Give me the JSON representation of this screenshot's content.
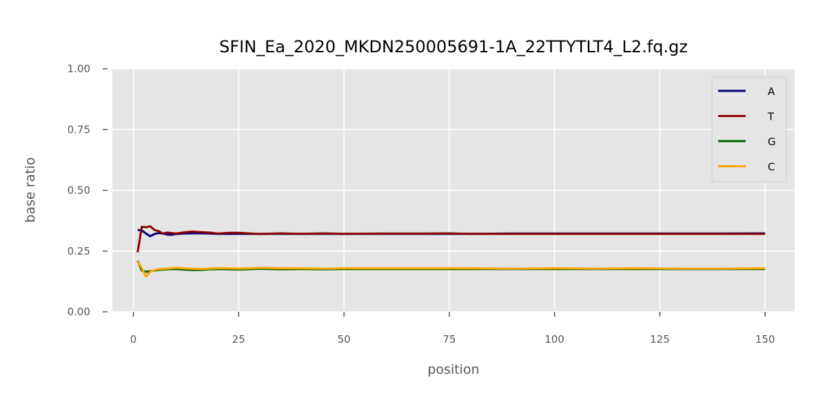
{
  "chart_data": {
    "type": "line",
    "title": "SFIN_Ea_2020_MKDN250005691-1A_22TTYTLT4_L2.fq.gz",
    "xlabel": "position",
    "ylabel": "base ratio",
    "xlim": [
      -5,
      157
    ],
    "ylim": [
      0,
      1
    ],
    "xticks": [
      0,
      25,
      50,
      75,
      100,
      125,
      150
    ],
    "yticks": [
      "0.00",
      "0.25",
      "0.50",
      "0.75",
      "1.00"
    ],
    "grid": true,
    "legend_position": "top-right",
    "series": [
      {
        "name": "A",
        "color": "#000080",
        "points": [
          [
            1,
            0.337
          ],
          [
            2,
            0.335
          ],
          [
            3,
            0.322
          ],
          [
            4,
            0.311
          ],
          [
            5,
            0.32
          ],
          [
            6,
            0.324
          ],
          [
            7,
            0.322
          ],
          [
            8,
            0.318
          ],
          [
            9,
            0.317
          ],
          [
            10,
            0.32
          ],
          [
            12,
            0.322
          ],
          [
            14,
            0.323
          ],
          [
            16,
            0.323
          ],
          [
            18,
            0.322
          ],
          [
            20,
            0.321
          ],
          [
            25,
            0.321
          ],
          [
            30,
            0.321
          ],
          [
            40,
            0.321
          ],
          [
            50,
            0.321
          ],
          [
            60,
            0.321
          ],
          [
            70,
            0.321
          ],
          [
            80,
            0.321
          ],
          [
            90,
            0.322
          ],
          [
            100,
            0.322
          ],
          [
            110,
            0.322
          ],
          [
            120,
            0.322
          ],
          [
            130,
            0.322
          ],
          [
            140,
            0.322
          ],
          [
            150,
            0.323
          ]
        ]
      },
      {
        "name": "T",
        "color": "#8b0000",
        "points": [
          [
            1,
            0.245
          ],
          [
            2,
            0.35
          ],
          [
            3,
            0.348
          ],
          [
            4,
            0.352
          ],
          [
            5,
            0.337
          ],
          [
            6,
            0.332
          ],
          [
            7,
            0.322
          ],
          [
            8,
            0.326
          ],
          [
            10,
            0.322
          ],
          [
            12,
            0.327
          ],
          [
            14,
            0.33
          ],
          [
            16,
            0.328
          ],
          [
            18,
            0.326
          ],
          [
            20,
            0.322
          ],
          [
            23,
            0.325
          ],
          [
            25,
            0.325
          ],
          [
            28,
            0.322
          ],
          [
            30,
            0.32
          ],
          [
            35,
            0.323
          ],
          [
            40,
            0.321
          ],
          [
            45,
            0.323
          ],
          [
            50,
            0.321
          ],
          [
            60,
            0.322
          ],
          [
            70,
            0.322
          ],
          [
            75,
            0.323
          ],
          [
            80,
            0.321
          ],
          [
            90,
            0.321
          ],
          [
            100,
            0.321
          ],
          [
            110,
            0.321
          ],
          [
            120,
            0.321
          ],
          [
            130,
            0.321
          ],
          [
            140,
            0.321
          ],
          [
            150,
            0.321
          ]
        ]
      },
      {
        "name": "G",
        "color": "#006400",
        "points": [
          [
            1,
            0.21
          ],
          [
            2,
            0.17
          ],
          [
            3,
            0.165
          ],
          [
            4,
            0.167
          ],
          [
            5,
            0.17
          ],
          [
            6,
            0.172
          ],
          [
            8,
            0.175
          ],
          [
            10,
            0.176
          ],
          [
            12,
            0.174
          ],
          [
            14,
            0.172
          ],
          [
            16,
            0.172
          ],
          [
            18,
            0.175
          ],
          [
            20,
            0.176
          ],
          [
            25,
            0.174
          ],
          [
            30,
            0.177
          ],
          [
            35,
            0.175
          ],
          [
            40,
            0.176
          ],
          [
            45,
            0.175
          ],
          [
            50,
            0.176
          ],
          [
            60,
            0.176
          ],
          [
            70,
            0.176
          ],
          [
            80,
            0.176
          ],
          [
            90,
            0.176
          ],
          [
            100,
            0.176
          ],
          [
            110,
            0.176
          ],
          [
            120,
            0.176
          ],
          [
            130,
            0.176
          ],
          [
            140,
            0.176
          ],
          [
            150,
            0.176
          ]
        ]
      },
      {
        "name": "C",
        "color": "#ffa500",
        "points": [
          [
            1,
            0.208
          ],
          [
            2,
            0.18
          ],
          [
            3,
            0.145
          ],
          [
            4,
            0.165
          ],
          [
            5,
            0.172
          ],
          [
            6,
            0.175
          ],
          [
            8,
            0.178
          ],
          [
            10,
            0.181
          ],
          [
            12,
            0.179
          ],
          [
            14,
            0.177
          ],
          [
            16,
            0.176
          ],
          [
            18,
            0.178
          ],
          [
            20,
            0.18
          ],
          [
            25,
            0.178
          ],
          [
            30,
            0.181
          ],
          [
            35,
            0.179
          ],
          [
            40,
            0.179
          ],
          [
            45,
            0.178
          ],
          [
            50,
            0.179
          ],
          [
            60,
            0.179
          ],
          [
            70,
            0.179
          ],
          [
            80,
            0.179
          ],
          [
            90,
            0.178
          ],
          [
            100,
            0.179
          ],
          [
            110,
            0.178
          ],
          [
            120,
            0.179
          ],
          [
            130,
            0.178
          ],
          [
            140,
            0.178
          ],
          [
            150,
            0.179
          ]
        ]
      }
    ]
  }
}
